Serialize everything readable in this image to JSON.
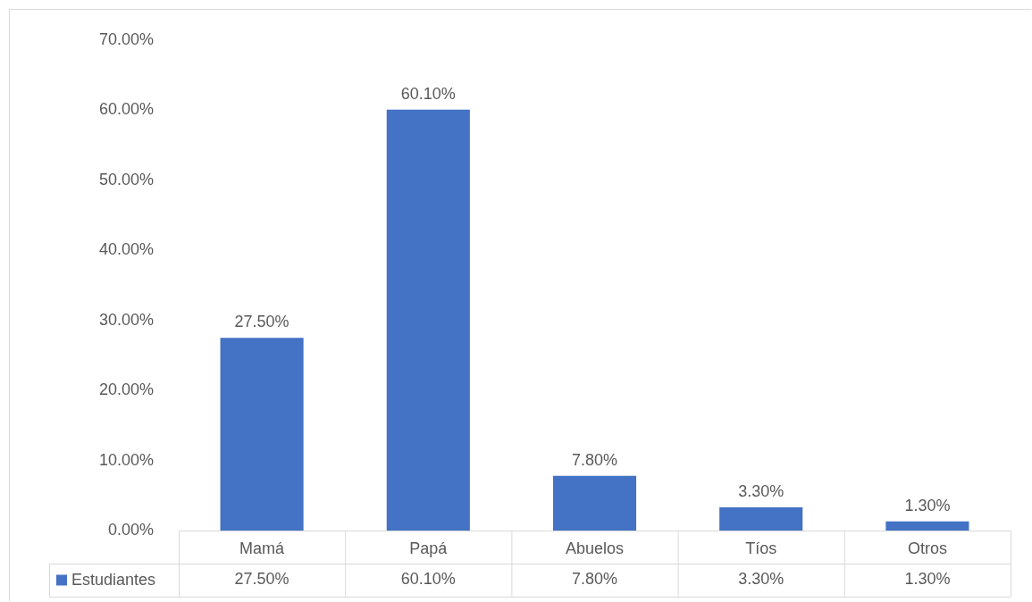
{
  "chart_data": {
    "type": "bar",
    "categories": [
      "Mamá",
      "Papá",
      "Abuelos",
      "Tíos",
      "Otros"
    ],
    "series": [
      {
        "name": "Estudiantes",
        "color": "#4472c4",
        "values": [
          27.5,
          60.1,
          7.8,
          3.3,
          1.3
        ],
        "value_labels": [
          "27.50%",
          "60.10%",
          "7.80%",
          "3.30%",
          "1.30%"
        ]
      }
    ],
    "ylim": [
      0,
      70
    ],
    "yticks": [
      {
        "value": 0,
        "label": "0.00%"
      },
      {
        "value": 10,
        "label": "10.00%"
      },
      {
        "value": 20,
        "label": "20.00%"
      },
      {
        "value": 30,
        "label": "30.00%"
      },
      {
        "value": 40,
        "label": "40.00%"
      },
      {
        "value": 50,
        "label": "50.00%"
      },
      {
        "value": 60,
        "label": "60.00%"
      },
      {
        "value": 70,
        "label": "70.00%"
      }
    ],
    "grid": false,
    "legend": "bottom left"
  }
}
